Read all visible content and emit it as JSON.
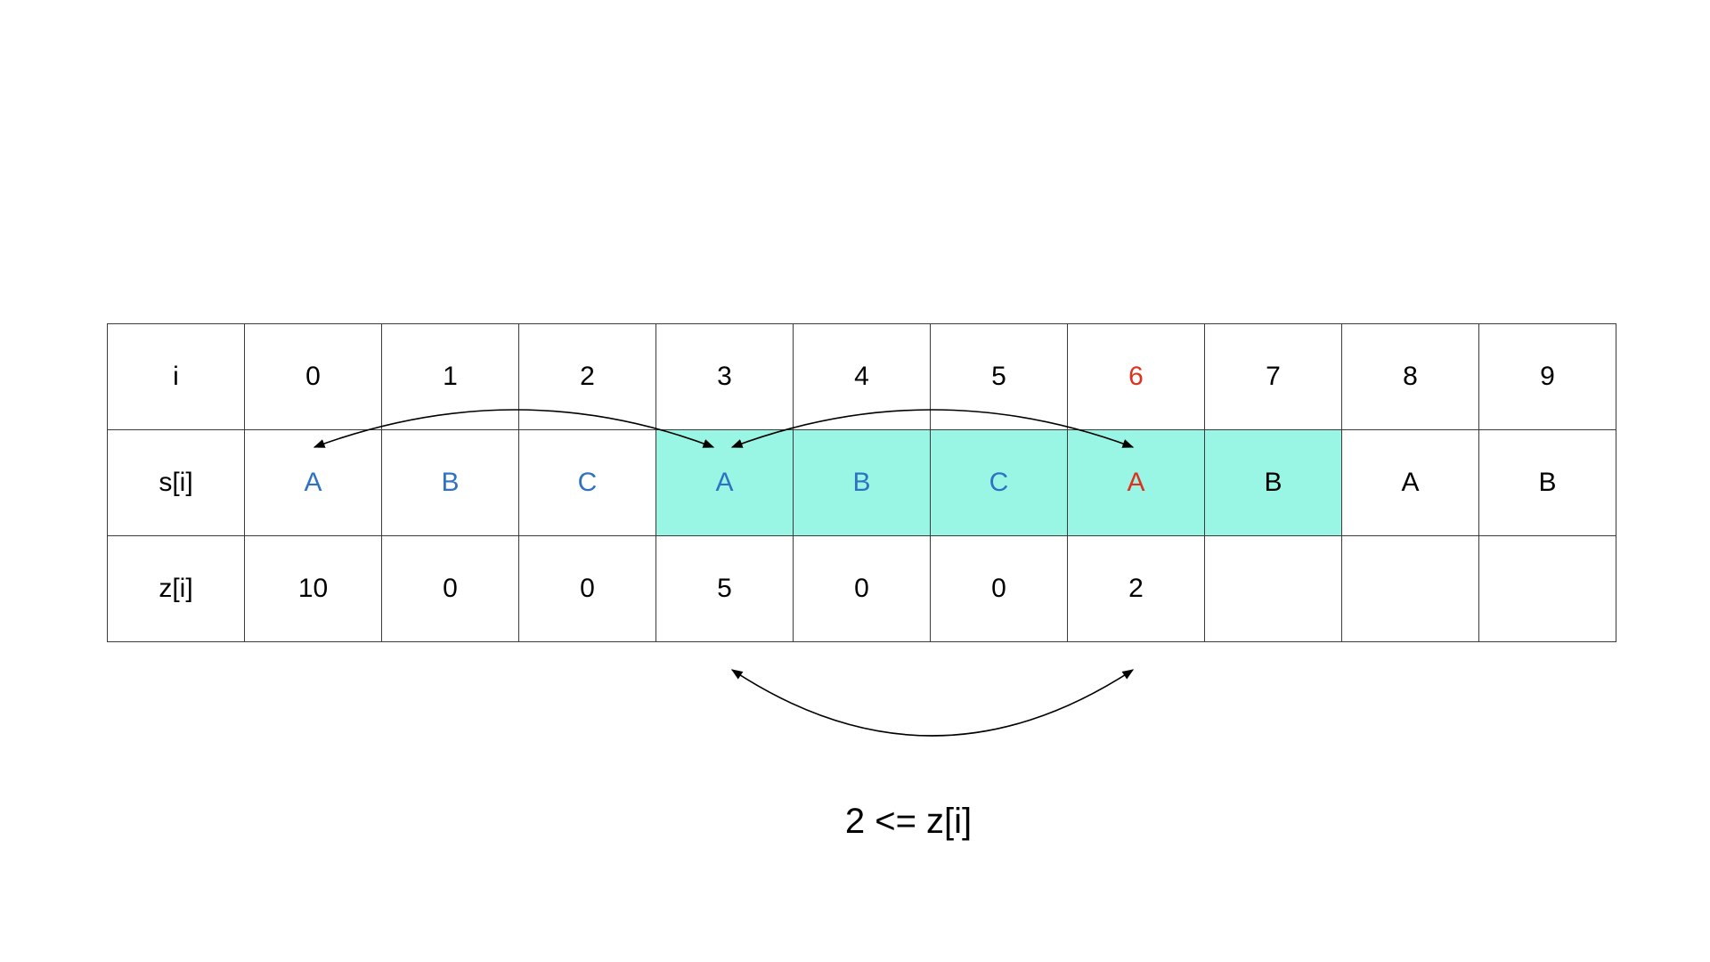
{
  "table": {
    "rows": [
      {
        "label": "i",
        "cells": [
          {
            "text": "0"
          },
          {
            "text": "1"
          },
          {
            "text": "2"
          },
          {
            "text": "3"
          },
          {
            "text": "4"
          },
          {
            "text": "5"
          },
          {
            "text": "6",
            "color": "#e0301e"
          },
          {
            "text": "7"
          },
          {
            "text": "8"
          },
          {
            "text": "9"
          }
        ]
      },
      {
        "label": "s[i]",
        "cells": [
          {
            "text": "A",
            "color": "#2f72c4"
          },
          {
            "text": "B",
            "color": "#2f72c4"
          },
          {
            "text": "C",
            "color": "#2f72c4"
          },
          {
            "text": "A",
            "color": "#2f72c4",
            "bg": "#99f6e4"
          },
          {
            "text": "B",
            "color": "#2f72c4",
            "bg": "#99f6e4"
          },
          {
            "text": "C",
            "color": "#2f72c4",
            "bg": "#99f6e4"
          },
          {
            "text": "A",
            "color": "#e0301e",
            "bg": "#99f6e4"
          },
          {
            "text": "B",
            "bg": "#99f6e4"
          },
          {
            "text": "A"
          },
          {
            "text": "B"
          }
        ]
      },
      {
        "label": "z[i]",
        "cells": [
          {
            "text": "10"
          },
          {
            "text": "0"
          },
          {
            "text": "0"
          },
          {
            "text": "5"
          },
          {
            "text": "0"
          },
          {
            "text": "0"
          },
          {
            "text": "2"
          },
          {
            "text": ""
          },
          {
            "text": ""
          },
          {
            "text": ""
          }
        ]
      }
    ]
  },
  "caption": "2 <= z[i]",
  "colors": {
    "match_blue": "#2f72c4",
    "mismatch_red": "#e0301e",
    "window_highlight": "#99f6e4",
    "grid_line": "#3a3a3a"
  }
}
